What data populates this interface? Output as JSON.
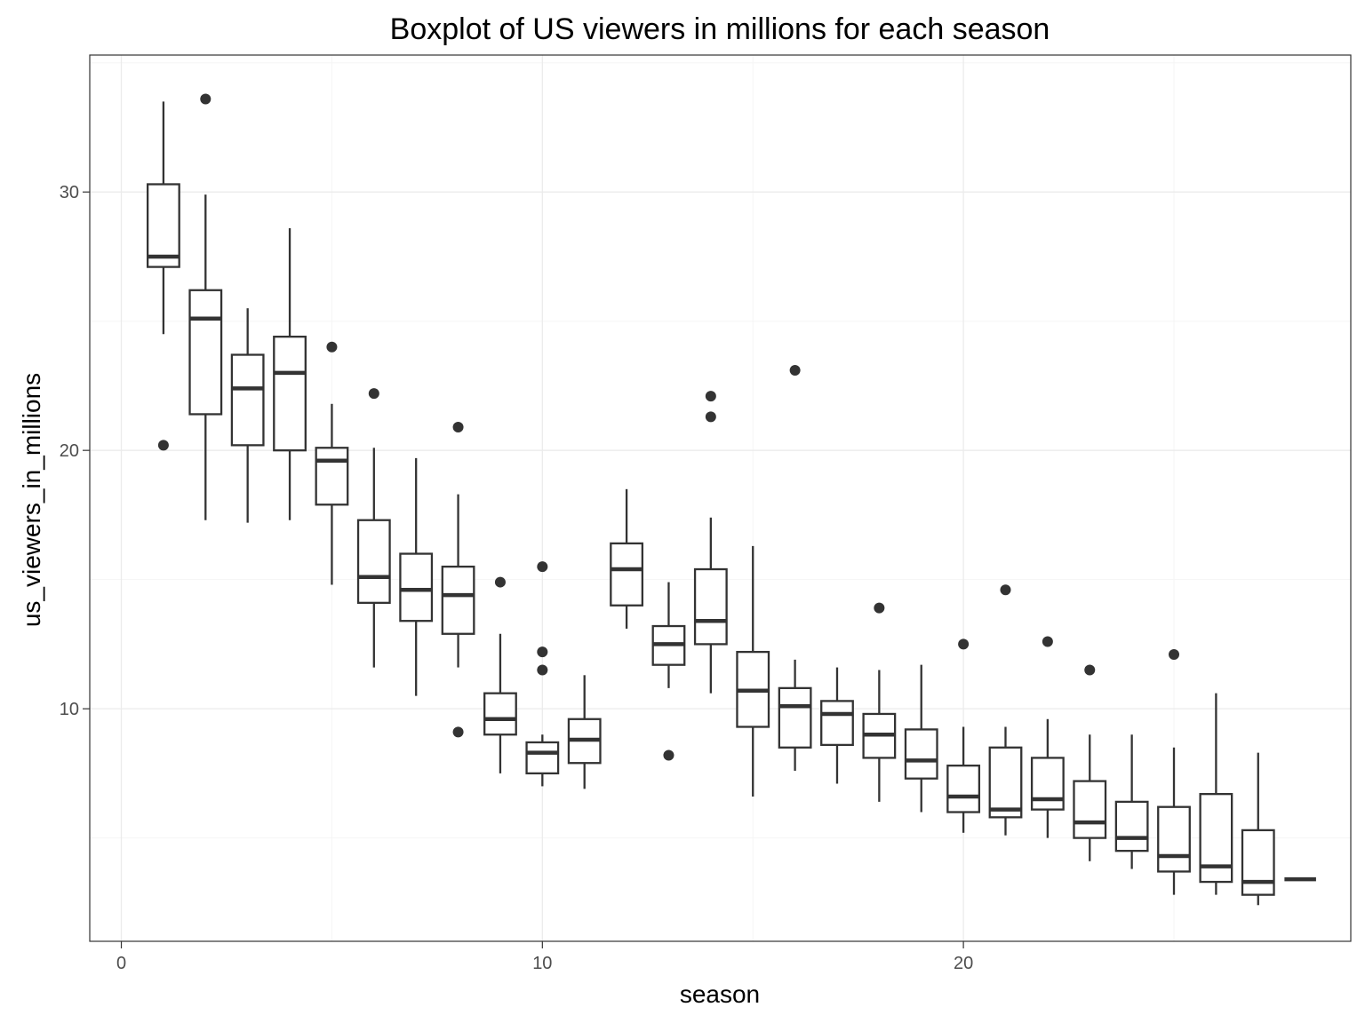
{
  "chart_data": {
    "type": "boxplot",
    "title": "Boxplot of US viewers in millions for each season",
    "xlabel": "season",
    "ylabel": "us_viewers_in_millions",
    "xlim": [
      -0.75,
      29.2
    ],
    "ylim": [
      1.0,
      35.3
    ],
    "x_ticks": [
      0,
      10,
      20
    ],
    "y_ticks": [
      10,
      20,
      30
    ],
    "grid": true,
    "series": [
      {
        "season": 1,
        "ymin": 24.5,
        "q1": 27.1,
        "median": 27.5,
        "q3": 30.3,
        "ymax": 33.5,
        "outliers": [
          20.2
        ]
      },
      {
        "season": 2,
        "ymin": 17.3,
        "q1": 21.4,
        "median": 25.1,
        "q3": 26.2,
        "ymax": 29.9,
        "outliers": [
          33.6
        ]
      },
      {
        "season": 3,
        "ymin": 17.2,
        "q1": 20.2,
        "median": 22.4,
        "q3": 23.7,
        "ymax": 25.5,
        "outliers": []
      },
      {
        "season": 4,
        "ymin": 17.3,
        "q1": 20.0,
        "median": 23.0,
        "q3": 24.4,
        "ymax": 28.6,
        "outliers": []
      },
      {
        "season": 5,
        "ymin": 14.8,
        "q1": 17.9,
        "median": 19.6,
        "q3": 20.1,
        "ymax": 21.8,
        "outliers": [
          24.0
        ]
      },
      {
        "season": 6,
        "ymin": 11.6,
        "q1": 14.1,
        "median": 15.1,
        "q3": 17.3,
        "ymax": 20.1,
        "outliers": [
          22.2
        ]
      },
      {
        "season": 7,
        "ymin": 10.5,
        "q1": 13.4,
        "median": 14.6,
        "q3": 16.0,
        "ymax": 19.7,
        "outliers": []
      },
      {
        "season": 8,
        "ymin": 11.6,
        "q1": 12.9,
        "median": 14.4,
        "q3": 15.5,
        "ymax": 18.3,
        "outliers": [
          20.9,
          9.1
        ]
      },
      {
        "season": 9,
        "ymin": 7.5,
        "q1": 9.0,
        "median": 9.6,
        "q3": 10.6,
        "ymax": 12.9,
        "outliers": [
          14.9
        ]
      },
      {
        "season": 10,
        "ymin": 7.0,
        "q1": 7.5,
        "median": 8.3,
        "q3": 8.7,
        "ymax": 9.0,
        "outliers": [
          15.5,
          12.2,
          11.5
        ]
      },
      {
        "season": 11,
        "ymin": 6.9,
        "q1": 7.9,
        "median": 8.8,
        "q3": 9.6,
        "ymax": 11.3,
        "outliers": []
      },
      {
        "season": 12,
        "ymin": 13.1,
        "q1": 14.0,
        "median": 15.4,
        "q3": 16.4,
        "ymax": 18.5,
        "outliers": []
      },
      {
        "season": 13,
        "ymin": 10.8,
        "q1": 11.7,
        "median": 12.5,
        "q3": 13.2,
        "ymax": 14.9,
        "outliers": [
          8.2
        ]
      },
      {
        "season": 14,
        "ymin": 10.6,
        "q1": 12.5,
        "median": 13.4,
        "q3": 15.4,
        "ymax": 17.4,
        "outliers": [
          22.1,
          21.3
        ]
      },
      {
        "season": 15,
        "ymin": 6.6,
        "q1": 9.3,
        "median": 10.7,
        "q3": 12.2,
        "ymax": 16.3,
        "outliers": []
      },
      {
        "season": 16,
        "ymin": 7.6,
        "q1": 8.5,
        "median": 10.1,
        "q3": 10.8,
        "ymax": 11.9,
        "outliers": [
          23.1
        ]
      },
      {
        "season": 17,
        "ymin": 7.1,
        "q1": 8.6,
        "median": 9.8,
        "q3": 10.3,
        "ymax": 11.6,
        "outliers": []
      },
      {
        "season": 18,
        "ymin": 6.4,
        "q1": 8.1,
        "median": 9.0,
        "q3": 9.8,
        "ymax": 11.5,
        "outliers": [
          13.9
        ]
      },
      {
        "season": 19,
        "ymin": 6.0,
        "q1": 7.3,
        "median": 8.0,
        "q3": 9.2,
        "ymax": 11.7,
        "outliers": []
      },
      {
        "season": 20,
        "ymin": 5.2,
        "q1": 6.0,
        "median": 6.6,
        "q3": 7.8,
        "ymax": 9.3,
        "outliers": [
          12.5
        ]
      },
      {
        "season": 21,
        "ymin": 5.1,
        "q1": 5.8,
        "median": 6.1,
        "q3": 8.5,
        "ymax": 9.3,
        "outliers": [
          14.6
        ]
      },
      {
        "season": 22,
        "ymin": 5.0,
        "q1": 6.1,
        "median": 6.5,
        "q3": 8.1,
        "ymax": 9.6,
        "outliers": [
          12.6
        ]
      },
      {
        "season": 23,
        "ymin": 4.1,
        "q1": 5.0,
        "median": 5.6,
        "q3": 7.2,
        "ymax": 9.0,
        "outliers": [
          11.5
        ]
      },
      {
        "season": 24,
        "ymin": 3.8,
        "q1": 4.5,
        "median": 5.0,
        "q3": 6.4,
        "ymax": 9.0,
        "outliers": []
      },
      {
        "season": 25,
        "ymin": 2.8,
        "q1": 3.7,
        "median": 4.3,
        "q3": 6.2,
        "ymax": 8.5,
        "outliers": [
          12.1
        ]
      },
      {
        "season": 26,
        "ymin": 2.8,
        "q1": 3.3,
        "median": 3.9,
        "q3": 6.7,
        "ymax": 10.6,
        "outliers": []
      },
      {
        "season": 27,
        "ymin": 2.4,
        "q1": 2.8,
        "median": 3.3,
        "q3": 5.3,
        "ymax": 8.3,
        "outliers": []
      },
      {
        "season": 28,
        "ymin": 3.4,
        "q1": 3.4,
        "median": 3.4,
        "q3": 3.4,
        "ymax": 3.4,
        "outliers": []
      }
    ]
  }
}
